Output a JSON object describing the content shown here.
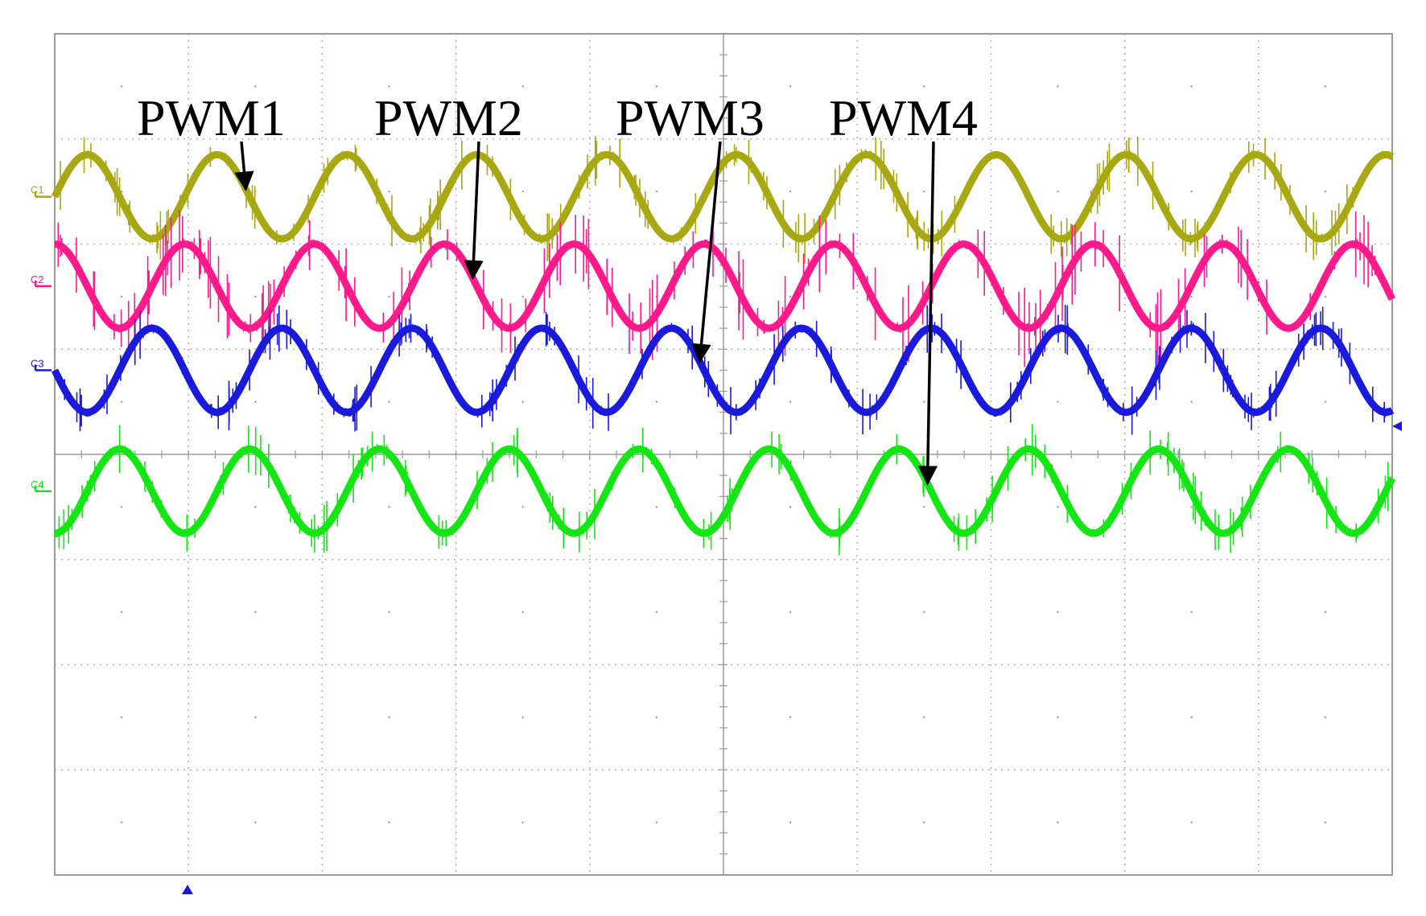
{
  "chart_data": {
    "type": "line",
    "title": "",
    "xlabel": "",
    "ylabel": "",
    "grid": true,
    "divisions": {
      "x": 10,
      "y": 8
    },
    "cycles_on_screen": 10.3,
    "series": [
      {
        "channel": "C1",
        "name": "PWM1",
        "color": "#a8a812",
        "baseline_div": 2.45,
        "amplitude_div": 0.4,
        "phase_deg": 0
      },
      {
        "channel": "C2",
        "name": "PWM2",
        "color": "#ff1a8c",
        "baseline_div": 1.6,
        "amplitude_div": 0.4,
        "phase_deg": 90
      },
      {
        "channel": "C3",
        "name": "PWM3",
        "color": "#1a1adb",
        "baseline_div": 0.8,
        "amplitude_div": 0.4,
        "phase_deg": 180
      },
      {
        "channel": "C4",
        "name": "PWM4",
        "color": "#14e614",
        "baseline_div": -0.35,
        "amplitude_div": 0.4,
        "phase_deg": 270
      }
    ]
  }
}
